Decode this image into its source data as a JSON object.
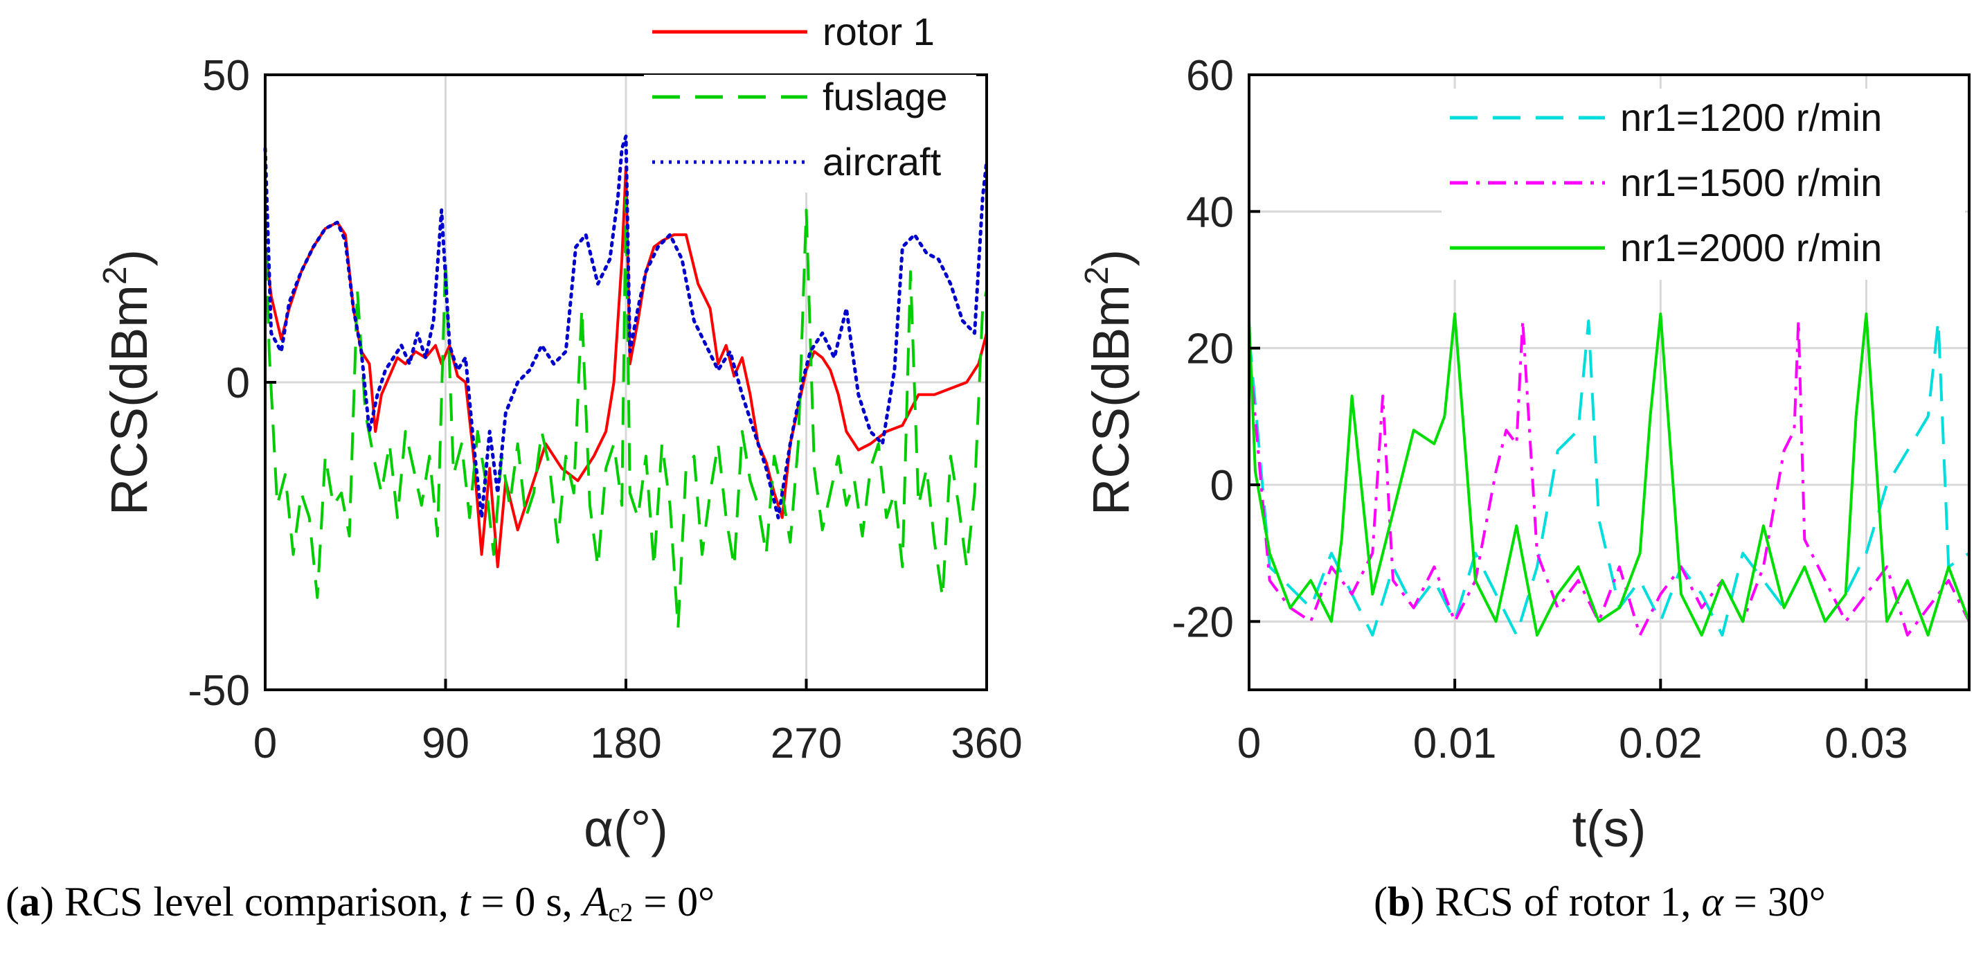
{
  "chart_data": [
    {
      "id": "a",
      "type": "line",
      "xlabel": "α(°)",
      "ylabel": "RCS(dBm",
      "ylabel_sup": "2",
      "ylabel_end": ")",
      "xlim": [
        0,
        360
      ],
      "ylim": [
        -50,
        50
      ],
      "xticks": [
        0,
        90,
        180,
        270,
        360
      ],
      "xtick_labels": [
        "0",
        "90",
        "180",
        "270",
        "360"
      ],
      "yticks": [
        50,
        0,
        -50
      ],
      "ytick_labels": [
        "50",
        "0",
        "-50"
      ],
      "grid": true,
      "legend_position": "top-right (above plot)",
      "series": [
        {
          "name": "rotor 1",
          "color": "#ff0000",
          "style": "solid",
          "x": [
            0,
            3,
            8,
            12,
            18,
            24,
            30,
            36,
            40,
            44,
            48,
            52,
            55,
            58,
            62,
            66,
            70,
            75,
            80,
            85,
            88,
            92,
            96,
            100,
            104,
            108,
            112,
            116,
            120,
            126,
            132,
            140,
            148,
            156,
            164,
            170,
            174,
            178,
            180,
            182,
            186,
            190,
            194,
            198,
            204,
            210,
            216,
            222,
            226,
            230,
            234,
            238,
            242,
            246,
            250,
            254,
            258,
            262,
            266,
            270,
            274,
            278,
            282,
            286,
            290,
            296,
            302,
            310,
            318,
            326,
            334,
            342,
            350,
            356,
            360
          ],
          "y": [
            22,
            14,
            7,
            12,
            18,
            22,
            25,
            26,
            24,
            12,
            5,
            3,
            -8,
            -2,
            1,
            4,
            3,
            5,
            4,
            6,
            3,
            6,
            1,
            0,
            -12,
            -28,
            -14,
            -30,
            -16,
            -24,
            -18,
            -10,
            -14,
            -16,
            -12,
            -8,
            0,
            20,
            35,
            3,
            10,
            18,
            22,
            23,
            24,
            24,
            16,
            12,
            3,
            6,
            1,
            4,
            -2,
            -10,
            -13,
            -18,
            -22,
            -10,
            -4,
            2,
            5,
            4,
            2,
            -2,
            -8,
            -11,
            -10,
            -8,
            -7,
            -2,
            -2,
            -1,
            0,
            3,
            8
          ]
        },
        {
          "name": "fuslage",
          "color": "#00cc00",
          "style": "dashed",
          "x": [
            0,
            2,
            6,
            10,
            14,
            18,
            22,
            26,
            30,
            34,
            38,
            42,
            46,
            50,
            54,
            58,
            62,
            66,
            70,
            74,
            78,
            82,
            86,
            90,
            94,
            98,
            102,
            106,
            110,
            114,
            118,
            122,
            126,
            130,
            134,
            138,
            142,
            146,
            150,
            154,
            158,
            162,
            166,
            170,
            174,
            178,
            180,
            182,
            186,
            190,
            194,
            198,
            202,
            206,
            210,
            214,
            218,
            222,
            226,
            230,
            234,
            238,
            242,
            246,
            250,
            254,
            258,
            262,
            266,
            270,
            274,
            278,
            282,
            286,
            290,
            294,
            298,
            302,
            306,
            310,
            314,
            318,
            322,
            326,
            330,
            334,
            338,
            342,
            346,
            350,
            354,
            358,
            360
          ],
          "y": [
            28,
            5,
            -20,
            -15,
            -28,
            -18,
            -22,
            -35,
            -12,
            -20,
            -18,
            -25,
            15,
            -5,
            -12,
            -18,
            -10,
            -22,
            -8,
            -14,
            -20,
            -12,
            -25,
            20,
            -15,
            -10,
            -22,
            -8,
            -16,
            -28,
            -12,
            -20,
            -10,
            -22,
            -18,
            -8,
            -14,
            -26,
            -12,
            -18,
            12,
            -20,
            -30,
            -14,
            -10,
            -20,
            30,
            -18,
            -22,
            -12,
            -30,
            -10,
            -20,
            -40,
            -14,
            -12,
            -28,
            -18,
            -10,
            -22,
            -30,
            -8,
            -16,
            -20,
            -28,
            -12,
            -18,
            -26,
            -10,
            28,
            -14,
            -24,
            -18,
            -12,
            -20,
            -16,
            -25,
            -14,
            -10,
            -22,
            -18,
            -30,
            18,
            -20,
            -14,
            -26,
            -35,
            -12,
            -20,
            -30,
            -18,
            12,
            15
          ]
        },
        {
          "name": "aircraft",
          "color": "#0000cc",
          "style": "dotted",
          "x": [
            0,
            3,
            8,
            12,
            18,
            24,
            30,
            36,
            40,
            44,
            48,
            52,
            56,
            60,
            64,
            68,
            72,
            76,
            80,
            84,
            88,
            92,
            96,
            100,
            104,
            108,
            112,
            116,
            120,
            126,
            132,
            138,
            144,
            150,
            155,
            160,
            166,
            172,
            176,
            178,
            180,
            182,
            186,
            190,
            196,
            202,
            208,
            214,
            220,
            226,
            232,
            238,
            244,
            250,
            256,
            262,
            268,
            272,
            278,
            284,
            290,
            296,
            302,
            308,
            314,
            318,
            324,
            330,
            336,
            342,
            348,
            354,
            358,
            360
          ],
          "y": [
            38,
            8,
            5,
            13,
            18,
            22,
            25,
            26,
            23,
            12,
            5,
            -8,
            -2,
            2,
            4,
            6,
            3,
            8,
            4,
            10,
            28,
            6,
            2,
            4,
            -10,
            -22,
            -8,
            -18,
            -5,
            0,
            2,
            6,
            3,
            5,
            22,
            24,
            16,
            20,
            30,
            38,
            40,
            5,
            12,
            18,
            22,
            24,
            20,
            10,
            6,
            2,
            5,
            -2,
            -8,
            -14,
            -22,
            -10,
            0,
            5,
            8,
            4,
            12,
            -2,
            -8,
            -10,
            2,
            22,
            24,
            21,
            20,
            16,
            10,
            8,
            30,
            36
          ]
        }
      ]
    },
    {
      "id": "b",
      "type": "line",
      "xlabel": "t(s)",
      "ylabel": "RCS(dBm",
      "ylabel_sup": "2",
      "ylabel_end": ")",
      "xlim": [
        0,
        0.035
      ],
      "ylim": [
        -30,
        60
      ],
      "xticks": [
        0,
        0.01,
        0.02,
        0.03
      ],
      "xtick_labels": [
        "0",
        "0.01",
        "0.02",
        "0.03"
      ],
      "yticks": [
        60,
        40,
        20,
        0,
        -20
      ],
      "ytick_labels": [
        "60",
        "40",
        "20",
        "0",
        "-20"
      ],
      "grid": true,
      "legend_position": "top-right",
      "series": [
        {
          "name": "nr1=1200 r/min",
          "color": "#00dddd",
          "style": "dashed",
          "x": [
            0,
            0.0005,
            0.001,
            0.002,
            0.003,
            0.004,
            0.005,
            0.006,
            0.007,
            0.008,
            0.009,
            0.01,
            0.011,
            0.012,
            0.013,
            0.014,
            0.015,
            0.016,
            0.0165,
            0.017,
            0.018,
            0.019,
            0.02,
            0.021,
            0.022,
            0.023,
            0.024,
            0.025,
            0.026,
            0.027,
            0.028,
            0.029,
            0.03,
            0.031,
            0.032,
            0.033,
            0.0335,
            0.034,
            0.035
          ],
          "y": [
            22,
            5,
            -12,
            -15,
            -18,
            -10,
            -16,
            -22,
            -12,
            -18,
            -14,
            -20,
            -10,
            -16,
            -22,
            -12,
            5,
            8,
            24,
            -5,
            -18,
            -14,
            -20,
            -12,
            -16,
            -22,
            -10,
            -14,
            -18,
            -12,
            -20,
            -16,
            -10,
            0,
            5,
            10,
            24,
            -12,
            -10
          ]
        },
        {
          "name": "nr1=1500 r/min",
          "color": "#ff00ff",
          "style": "dashdot",
          "x": [
            0,
            0.0005,
            0.001,
            0.002,
            0.003,
            0.004,
            0.005,
            0.006,
            0.0065,
            0.007,
            0.008,
            0.009,
            0.01,
            0.011,
            0.012,
            0.0125,
            0.013,
            0.0133,
            0.014,
            0.015,
            0.016,
            0.017,
            0.018,
            0.019,
            0.02,
            0.021,
            0.022,
            0.023,
            0.024,
            0.025,
            0.026,
            0.0265,
            0.0267,
            0.027,
            0.028,
            0.029,
            0.03,
            0.031,
            0.032,
            0.033,
            0.034,
            0.035
          ],
          "y": [
            20,
            3,
            -14,
            -18,
            -20,
            -12,
            -16,
            -10,
            13,
            -14,
            -18,
            -12,
            -20,
            -14,
            2,
            8,
            6,
            24,
            -10,
            -18,
            -14,
            -20,
            -12,
            -22,
            -16,
            -12,
            -18,
            -14,
            -20,
            -12,
            5,
            8,
            24,
            -8,
            -14,
            -20,
            -16,
            -12,
            -22,
            -18,
            -14,
            -20
          ]
        },
        {
          "name": "nr1=2000 r/min",
          "color": "#00dd00",
          "style": "solid",
          "x": [
            0,
            0.0003,
            0.001,
            0.002,
            0.003,
            0.004,
            0.0045,
            0.005,
            0.006,
            0.007,
            0.008,
            0.009,
            0.0095,
            0.01,
            0.011,
            0.012,
            0.013,
            0.014,
            0.015,
            0.016,
            0.017,
            0.018,
            0.019,
            0.0195,
            0.02,
            0.021,
            0.022,
            0.023,
            0.024,
            0.025,
            0.026,
            0.027,
            0.028,
            0.029,
            0.0295,
            0.03,
            0.031,
            0.032,
            0.033,
            0.034,
            0.035
          ],
          "y": [
            24,
            2,
            -10,
            -18,
            -14,
            -20,
            -8,
            13,
            -16,
            -4,
            8,
            6,
            10,
            25,
            -14,
            -20,
            -6,
            -22,
            -16,
            -12,
            -20,
            -18,
            -10,
            10,
            25,
            -16,
            -22,
            -14,
            -20,
            -6,
            -18,
            -12,
            -20,
            -16,
            10,
            25,
            -20,
            -14,
            -22,
            -12,
            -20
          ]
        }
      ]
    }
  ],
  "captions": {
    "a": {
      "tag": "a",
      "text_before_t": " RCS level comparison, ",
      "t_var": "t",
      "t_value": " = 0 s, ",
      "a_var": "A",
      "a_sub": "c2",
      "a_value": " = 0°"
    },
    "b": {
      "tag": "b",
      "text": " RCS of rotor 1, ",
      "alpha_var": "α",
      "alpha_value": " = 30°"
    }
  }
}
